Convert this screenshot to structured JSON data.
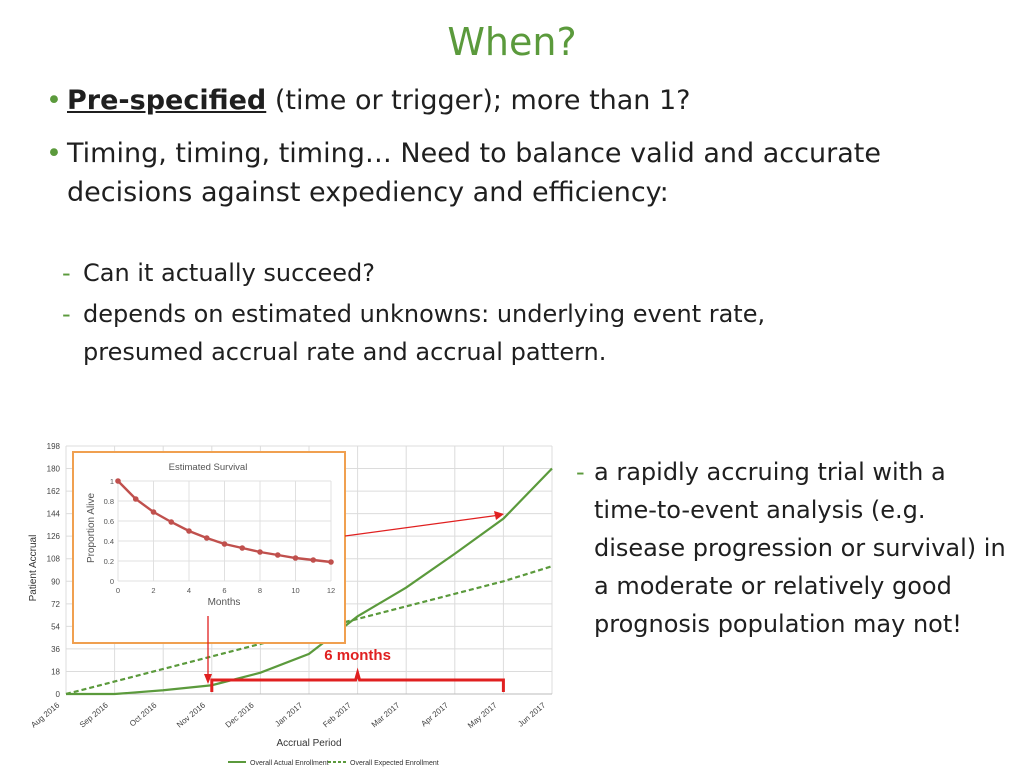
{
  "slide": {
    "title": "When?",
    "bullets": [
      {
        "strong": "Pre-specified",
        "rest": " (time or trigger); more than 1?"
      },
      {
        "text": "Timing, timing, timing… Need to balance valid and accurate decisions against expediency and efficiency:"
      }
    ],
    "sub_bullets": [
      "Can it actually succeed?",
      "depends on estimated unknowns: underlying event rate, presumed accrual rate and accrual pattern."
    ],
    "side_note": "a rapidly accruing trial with a time-to-event analysis (e.g. disease progression or survival) in a moderate or relatively good prognosis population may not!",
    "bullet_symbol": "•",
    "dash_symbol": "-",
    "accent_color": "#5b9a3c"
  },
  "chart_data": [
    {
      "type": "line",
      "xlabel": "Accrual Period",
      "ylabel": "Patient Accrual",
      "categories": [
        "Aug 2016",
        "Sep 2016",
        "Oct 2016",
        "Nov 2016",
        "Dec 2016",
        "Jan 2017",
        "Feb 2017",
        "Mar 2017",
        "Apr 2017",
        "May 2017",
        "Jun 2017"
      ],
      "yticks": [
        0,
        18,
        36,
        54,
        72,
        90,
        108,
        126,
        144,
        162,
        180,
        198
      ],
      "ylim": [
        0,
        198
      ],
      "grid": true,
      "legend_position": "bottom",
      "series": [
        {
          "name": "Overall Actual Enrollment",
          "style": "solid",
          "color": "#5b9a3c",
          "values": [
            0,
            0,
            3,
            7,
            17,
            32,
            62,
            85,
            112,
            140,
            180
          ]
        },
        {
          "name": "Overall Expected Enrollment",
          "style": "dashed",
          "color": "#5b9a3c",
          "values": [
            0,
            10,
            20,
            30,
            40,
            50,
            60,
            70,
            80,
            90,
            102
          ]
        }
      ],
      "annotation": {
        "text": "6 months",
        "color": "#e02020",
        "from": "Nov 2016",
        "to": "May 2017"
      }
    },
    {
      "type": "line",
      "title": "Estimated Survival",
      "xlabel": "Months",
      "ylabel": "Proportion Alive",
      "xticks": [
        0,
        2,
        4,
        6,
        8,
        10,
        12
      ],
      "yticks": [
        0,
        0.2,
        0.4,
        0.6,
        0.8,
        1
      ],
      "xlim": [
        0,
        12
      ],
      "ylim": [
        0,
        1
      ],
      "grid": true,
      "series": [
        {
          "color": "#c0504d",
          "x": [
            0,
            1,
            2,
            3,
            4,
            5,
            6,
            7,
            8,
            9,
            10,
            11,
            12
          ],
          "y": [
            1.0,
            0.82,
            0.69,
            0.59,
            0.5,
            0.43,
            0.37,
            0.33,
            0.29,
            0.26,
            0.23,
            0.21,
            0.19
          ]
        }
      ]
    }
  ]
}
